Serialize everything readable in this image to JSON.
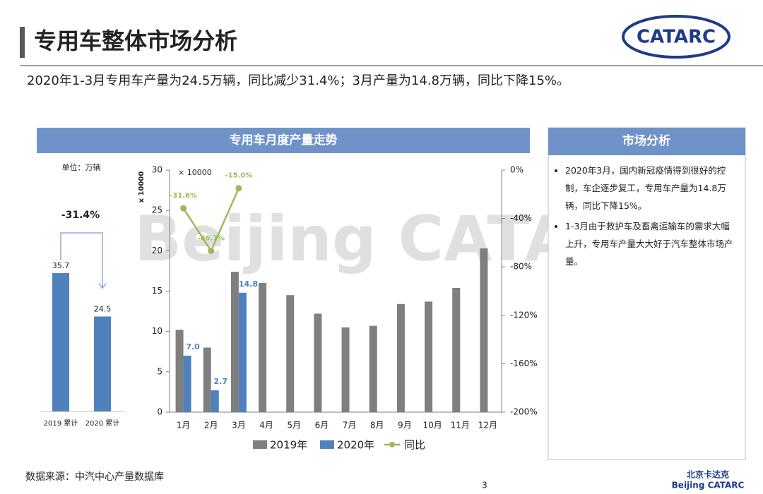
{
  "header": {
    "title": "专用车整体市场分析",
    "logo": "CATARC"
  },
  "subtitle": "2020年1-3月专用车产量为24.5万辆，同比减少31.4%；3月产量为14.8万辆，同比下降15%。",
  "panel_title": "专用车月度产量走势",
  "watermark": "Beijing CATARC",
  "analysis": {
    "title": "市场分析",
    "items": [
      "2020年3月，国内新冠疫情得到很好的控制，车企逐步复工，专用车产量为14.8万辆，同比下降15%。",
      "1-3月由于救护车及畜禽运输车的需求大幅上升，专用车产量大大好于汽车整体市场产量。"
    ]
  },
  "footer": {
    "source": "数据来源：中汽中心产量数据库",
    "page": "3",
    "brand_cn": "北京卡达克",
    "brand_en": "Beijing CATARC"
  },
  "chart_data": [
    {
      "type": "bar",
      "unit": "单位：万辆",
      "categories": [
        "2019 累计",
        "2020 累计"
      ],
      "values": [
        35.7,
        24.5
      ],
      "annotation": "-31.4%",
      "color": "#4f81bd",
      "ylim": [
        0,
        40
      ]
    },
    {
      "type": "combo",
      "y_axis_label": "x 10000",
      "unit_note": "× 10000",
      "categories": [
        "1月",
        "2月",
        "3月",
        "4月",
        "5月",
        "6月",
        "7月",
        "8月",
        "9月",
        "10月",
        "11月",
        "12月"
      ],
      "series": [
        {
          "name": "2019年",
          "color": "#7f7f7f",
          "values": [
            10.2,
            8.0,
            17.4,
            16.0,
            14.5,
            12.2,
            10.5,
            10.7,
            13.4,
            13.7,
            15.4,
            20.3
          ]
        },
        {
          "name": "2020年",
          "color": "#4f81bd",
          "values": [
            7.0,
            2.7,
            14.8,
            null,
            null,
            null,
            null,
            null,
            null,
            null,
            null,
            null
          ],
          "value_labels": [
            "7.0",
            "2.7",
            "14.8",
            null,
            null,
            null,
            null,
            null,
            null,
            null,
            null,
            null
          ]
        },
        {
          "name": "同比",
          "color": "#9bbb59",
          "axis": "y2",
          "values": [
            -31.6,
            -66.7,
            -15.0,
            null,
            null,
            null,
            null,
            null,
            null,
            null,
            null,
            null
          ],
          "value_labels": [
            "-31.6%",
            "-66.7%",
            "-15.0%",
            null,
            null,
            null,
            null,
            null,
            null,
            null,
            null,
            null
          ]
        }
      ],
      "ylim": [
        0,
        30
      ],
      "yticks": [
        0,
        5,
        10,
        15,
        20,
        25,
        30
      ],
      "y2lim": [
        -200,
        0
      ],
      "y2ticks": [
        {
          "value": 0,
          "label": "0%"
        },
        {
          "value": -40,
          "label": "-40%"
        },
        {
          "value": -80,
          "label": "-80%"
        },
        {
          "value": -120,
          "label": "-120%"
        },
        {
          "value": -160,
          "label": "-160%"
        },
        {
          "value": -200,
          "label": "-200%"
        }
      ]
    }
  ]
}
